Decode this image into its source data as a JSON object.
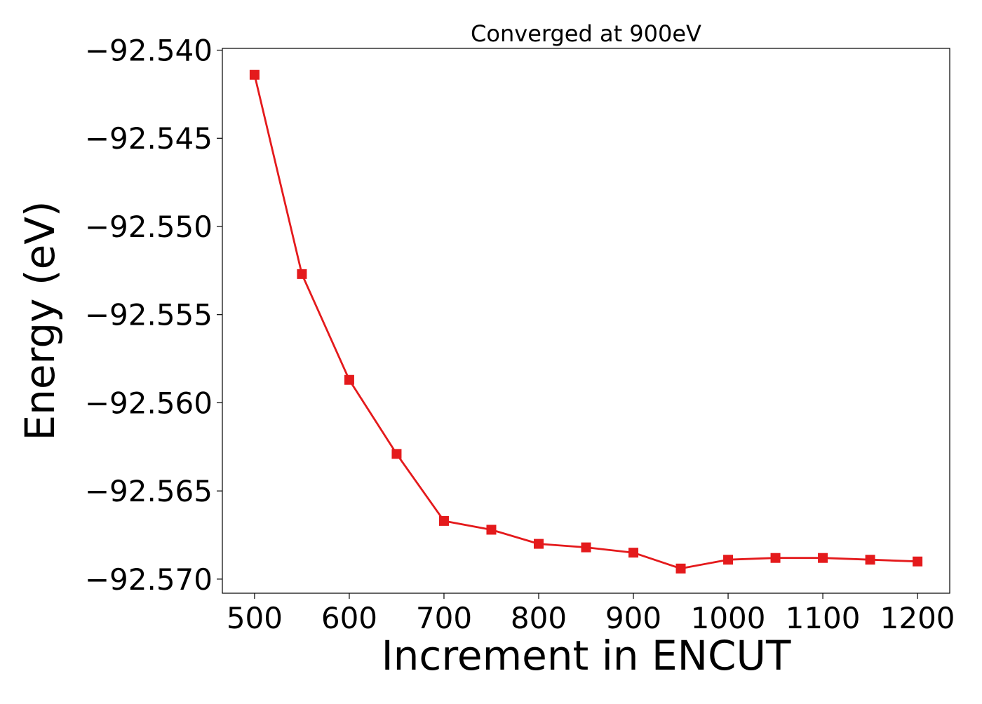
{
  "chart_data": {
    "type": "line",
    "title": "Converged at 900eV",
    "xlabel": "Increment in ENCUT",
    "ylabel": "Energy (eV)",
    "x": [
      500,
      550,
      600,
      650,
      700,
      750,
      800,
      850,
      900,
      950,
      1000,
      1050,
      1100,
      1150,
      1200
    ],
    "series": [
      {
        "values": [
          -92.5414,
          -92.5527,
          -92.5587,
          -92.5629,
          -92.5667,
          -92.5672,
          -92.568,
          -92.5682,
          -92.5685,
          -92.5694,
          -92.5689,
          -92.5688,
          -92.5688,
          -92.5689,
          -92.569
        ],
        "color": "#e41a1c",
        "marker": "square"
      }
    ],
    "xticks": [
      500,
      600,
      700,
      800,
      900,
      1000,
      1100,
      1200
    ],
    "xtick_labels": [
      "500",
      "600",
      "700",
      "800",
      "900",
      "1000",
      "1100",
      "1200"
    ],
    "yticks": [
      -92.54,
      -92.545,
      -92.55,
      -92.555,
      -92.56,
      -92.565,
      -92.57
    ],
    "ytick_labels": [
      "−92.540",
      "−92.545",
      "−92.550",
      "−92.555",
      "−92.560",
      "−92.565",
      "−92.570"
    ],
    "xlim": [
      466,
      1234
    ],
    "ylim": [
      -92.5708,
      -92.5399
    ],
    "grid": false,
    "legend": "none"
  }
}
